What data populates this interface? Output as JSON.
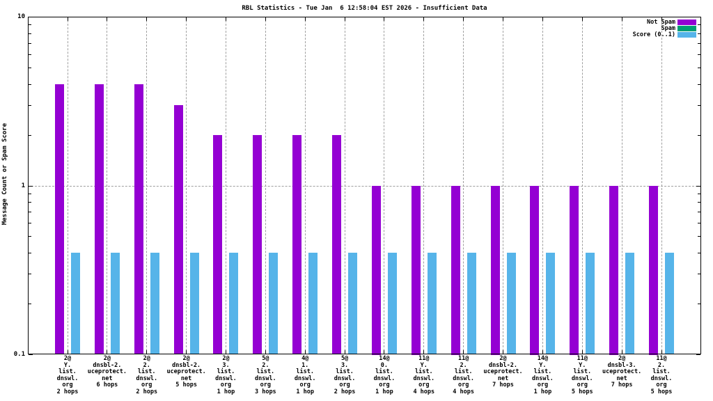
{
  "chart_data": {
    "type": "bar",
    "title": "RBL Statistics - Tue Jan  6 12:58:04 EST 2026 - Insufficient Data",
    "xlabel": "",
    "ylabel": "Message Count or Spam Score",
    "y_scale": "log",
    "ylim": [
      0.1,
      10
    ],
    "y_ticks": [
      {
        "value": 10,
        "label": "10"
      },
      {
        "value": 1,
        "label": "1"
      },
      {
        "value": 0.1,
        "label": "0.1"
      }
    ],
    "grid": {
      "horizontal_gridline_at": 1,
      "vertical_gridlines": true,
      "style": "dashed-gray"
    },
    "legend_position": "top-right-inside",
    "categories": [
      [
        "2@",
        "Y.",
        "list.",
        "dnswl.",
        "org",
        "2 hops"
      ],
      [
        "2@",
        "dnsbl-2.",
        "uceprotect.",
        "net",
        "6 hops"
      ],
      [
        "2@",
        "2.",
        "list.",
        "dnswl.",
        "org",
        "2 hops"
      ],
      [
        "2@",
        "dnsbl-2.",
        "uceprotect.",
        "net",
        "5 hops"
      ],
      [
        "2@",
        "3.",
        "list.",
        "dnswl.",
        "org",
        "1 hop"
      ],
      [
        "5@",
        "2.",
        "list.",
        "dnswl.",
        "org",
        "3 hops"
      ],
      [
        "4@",
        "1.",
        "list.",
        "dnswl.",
        "org",
        "1 hop"
      ],
      [
        "5@",
        "3.",
        "list.",
        "dnswl.",
        "org",
        "2 hops"
      ],
      [
        "14@",
        "0.",
        "list.",
        "dnswl.",
        "org",
        "1 hop"
      ],
      [
        "11@",
        "Y.",
        "list.",
        "dnswl.",
        "org",
        "4 hops"
      ],
      [
        "11@",
        "2.",
        "list.",
        "dnswl.",
        "org",
        "4 hops"
      ],
      [
        "2@",
        "dnsbl-2.",
        "uceprotect.",
        "net",
        "7 hops"
      ],
      [
        "14@",
        "Y.",
        "list.",
        "dnswl.",
        "org",
        "1 hop"
      ],
      [
        "11@",
        "Y.",
        "list.",
        "dnswl.",
        "org",
        "5 hops"
      ],
      [
        "2@",
        "dnsbl-3.",
        "uceprotect.",
        "net",
        "7 hops"
      ],
      [
        "11@",
        "2.",
        "list.",
        "dnswl.",
        "org",
        "5 hops"
      ]
    ],
    "series": [
      {
        "name": "Not Spam",
        "color": "#9400d3",
        "values": [
          4,
          4,
          4,
          3,
          2,
          2,
          2,
          2,
          1,
          1,
          1,
          1,
          1,
          1,
          1,
          1
        ]
      },
      {
        "name": "Spam",
        "color": "#009e73",
        "values": [
          0,
          0,
          0,
          0,
          0,
          0,
          0,
          0,
          0,
          0,
          0,
          0,
          0,
          0,
          0,
          0
        ]
      },
      {
        "name": "Score (0..1)",
        "color": "#56b4e9",
        "values": [
          0.4,
          0.4,
          0.4,
          0.4,
          0.4,
          0.4,
          0.4,
          0.4,
          0.4,
          0.4,
          0.4,
          0.4,
          0.4,
          0.4,
          0.4,
          0.4
        ]
      }
    ],
    "colors": {
      "not_spam": "#9400d3",
      "spam": "#009e73",
      "score": "#56b4e9",
      "grid": "#9f9f9f",
      "border": "#000000",
      "background": "#ffffff"
    }
  }
}
